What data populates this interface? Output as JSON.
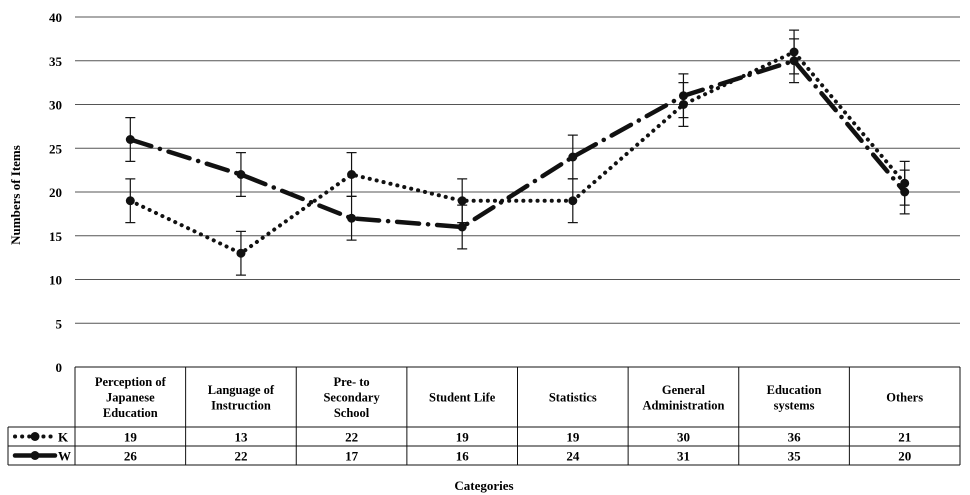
{
  "chart_data": {
    "type": "line",
    "title": "",
    "ylabel": "Numbers of Items",
    "xlabel": "Categories",
    "ylim": [
      0,
      40
    ],
    "yticks": [
      0,
      5,
      10,
      15,
      20,
      25,
      30,
      35,
      40
    ],
    "grid": true,
    "legend": "data table",
    "categories": [
      [
        "Perception of",
        "Japanese",
        "Education"
      ],
      [
        "Language of",
        "Instruction"
      ],
      [
        "Pre- to",
        "Secondary",
        "School"
      ],
      [
        "Student Life"
      ],
      [
        "Statistics"
      ],
      [
        "General",
        "Administration"
      ],
      [
        "Education",
        "systems"
      ],
      [
        "Others"
      ]
    ],
    "series": [
      {
        "name": "K",
        "values": [
          19,
          13,
          22,
          19,
          19,
          30,
          36,
          21
        ],
        "style": "dotted",
        "color": "#111111"
      },
      {
        "name": "W",
        "values": [
          26,
          22,
          17,
          16,
          24,
          31,
          35,
          20
        ],
        "style": "dash-dot",
        "color": "#111111"
      }
    ],
    "error_bar": 2.5
  }
}
